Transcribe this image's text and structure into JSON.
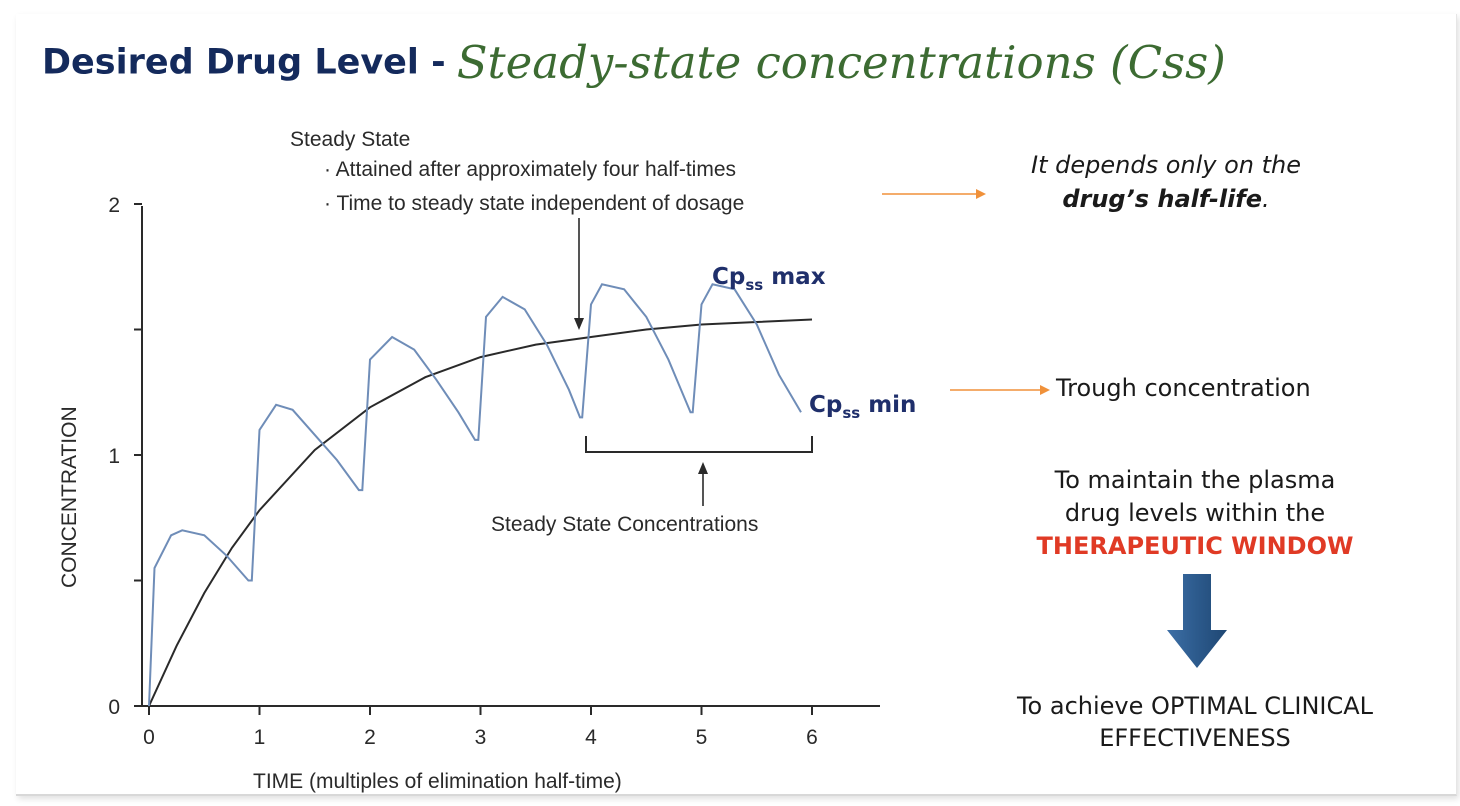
{
  "slide": {
    "title_bold": "Desired Drug Level -",
    "title_script": "Steady-state concentrations (Css)"
  },
  "right_panel": {
    "half_life_line1": "It depends only on the",
    "half_life_bold": "drug’s half-life",
    "half_life_end": ".",
    "trough": "Trough concentration",
    "maintain_line1": "To maintain the plasma",
    "maintain_line2": "drug levels within the",
    "therapeutic": "THERAPEUTIC WINDOW",
    "optimal_line1": "To achieve OPTIMAL CLINICAL",
    "optimal_line2": "EFFECTIVENESS"
  },
  "colors": {
    "title": "#142a5c",
    "script": "#3c6b32",
    "cp_label": "#1f2f6b",
    "therapeutic": "#e03a25",
    "orange_arrow": "#f0913a",
    "blue_arrow": "#2c5a8c",
    "curve_dosing": "#6f8db8",
    "curve_average": "#2a2a2a"
  },
  "chart_data": {
    "type": "line",
    "xlabel": "TIME (multiples of elimination half-time)",
    "ylabel": "CONCENTRATION",
    "xlim": [
      0,
      6.5
    ],
    "ylim": [
      0,
      2
    ],
    "x_ticks": [
      0,
      1,
      2,
      3,
      4,
      5,
      6
    ],
    "y_ticks": [
      0,
      1,
      2
    ],
    "y_minor_ticks": [
      0.5,
      1.5
    ],
    "series": [
      {
        "style": "dosing",
        "points": [
          [
            0,
            0
          ],
          [
            0.05,
            0.55
          ],
          [
            0.2,
            0.68
          ],
          [
            0.3,
            0.7
          ],
          [
            0.5,
            0.68
          ],
          [
            0.7,
            0.6
          ],
          [
            0.9,
            0.5
          ],
          [
            0.93,
            0.5
          ],
          [
            1,
            1.1
          ],
          [
            1.15,
            1.2
          ],
          [
            1.3,
            1.18
          ],
          [
            1.5,
            1.08
          ],
          [
            1.7,
            0.98
          ],
          [
            1.9,
            0.86
          ],
          [
            1.93,
            0.86
          ],
          [
            2,
            1.38
          ],
          [
            2.2,
            1.47
          ],
          [
            2.4,
            1.42
          ],
          [
            2.6,
            1.3
          ],
          [
            2.8,
            1.17
          ],
          [
            2.95,
            1.06
          ],
          [
            2.98,
            1.06
          ],
          [
            3.05,
            1.55
          ],
          [
            3.2,
            1.63
          ],
          [
            3.4,
            1.58
          ],
          [
            3.6,
            1.44
          ],
          [
            3.8,
            1.26
          ],
          [
            3.9,
            1.15
          ],
          [
            3.92,
            1.15
          ],
          [
            4.0,
            1.6
          ],
          [
            4.1,
            1.68
          ],
          [
            4.3,
            1.66
          ],
          [
            4.5,
            1.55
          ],
          [
            4.7,
            1.38
          ],
          [
            4.9,
            1.17
          ],
          [
            4.92,
            1.17
          ],
          [
            5.0,
            1.6
          ],
          [
            5.1,
            1.68
          ],
          [
            5.3,
            1.66
          ],
          [
            5.5,
            1.52
          ],
          [
            5.7,
            1.32
          ],
          [
            5.9,
            1.17
          ]
        ]
      },
      {
        "style": "average",
        "points": [
          [
            0,
            0
          ],
          [
            0.25,
            0.24
          ],
          [
            0.5,
            0.45
          ],
          [
            0.75,
            0.63
          ],
          [
            1,
            0.78
          ],
          [
            1.5,
            1.02
          ],
          [
            2,
            1.19
          ],
          [
            2.5,
            1.31
          ],
          [
            3,
            1.39
          ],
          [
            3.5,
            1.44
          ],
          [
            4,
            1.47
          ],
          [
            4.5,
            1.5
          ],
          [
            5,
            1.52
          ],
          [
            5.5,
            1.53
          ],
          [
            6,
            1.54
          ]
        ]
      }
    ],
    "annotations": {
      "steady_state_heading": "Steady State",
      "bullet1": "· Attained after approximately four half-times",
      "bullet2": "· Time to steady state independent of dosage",
      "bracket_label": "Steady State Concentrations",
      "cpss_max_prefix": "Cp",
      "cpss_max_sub": "ss",
      "cpss_max_suffix": " max",
      "cpss_min_prefix": "Cp",
      "cpss_min_sub": "ss",
      "cpss_min_suffix": " min"
    }
  }
}
